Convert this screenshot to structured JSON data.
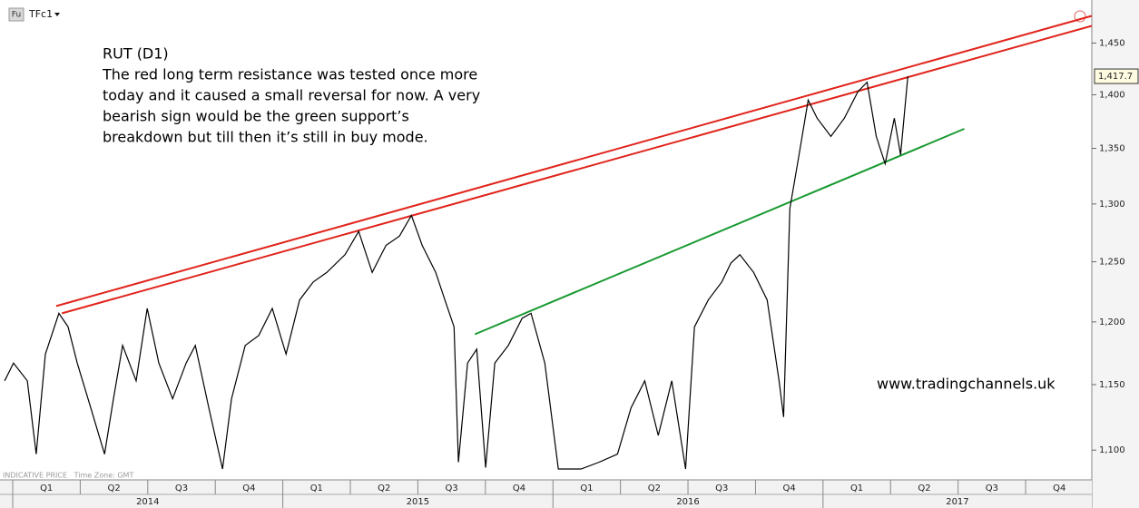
{
  "header": {
    "symbol_badge": "Fu",
    "symbol": "TFc1"
  },
  "chart_data": {
    "type": "line",
    "title": "RUT (D1)",
    "annotation": [
      "The red long term resistance was tested once more",
      "today and it caused a small reversal for now. A very",
      "bearish sign would be the green support’s",
      "breakdown but till then it’s still in buy mode."
    ],
    "watermark": "www.tradingchannels.uk",
    "footer_note": "INDICATIVE PRICE   Time Zone: GMT",
    "log_scale": true,
    "grid": false,
    "xlim": [
      2013.953,
      2017.995
    ],
    "ylim": [
      1084,
      1493
    ],
    "yticks": [
      {
        "value": 1100,
        "label": "1,100"
      },
      {
        "value": 1150,
        "label": "1,150"
      },
      {
        "value": 1200,
        "label": "1,200"
      },
      {
        "value": 1250,
        "label": "1,250"
      },
      {
        "value": 1300,
        "label": "1,300"
      },
      {
        "value": 1350,
        "label": "1,350"
      },
      {
        "value": 1400,
        "label": "1,400"
      },
      {
        "value": 1450,
        "label": "1,450"
      }
    ],
    "xticks": [
      {
        "value": 2014.0,
        "label": "Q1"
      },
      {
        "value": 2014.25,
        "label": "Q2"
      },
      {
        "value": 2014.5,
        "label": "Q3"
      },
      {
        "value": 2014.75,
        "label": "Q4"
      },
      {
        "value": 2015.0,
        "label": "Q1"
      },
      {
        "value": 2015.25,
        "label": "Q2"
      },
      {
        "value": 2015.5,
        "label": "Q3"
      },
      {
        "value": 2015.75,
        "label": "Q4"
      },
      {
        "value": 2016.0,
        "label": "Q1"
      },
      {
        "value": 2016.25,
        "label": "Q2"
      },
      {
        "value": 2016.5,
        "label": "Q3"
      },
      {
        "value": 2016.75,
        "label": "Q4"
      },
      {
        "value": 2017.0,
        "label": "Q1"
      },
      {
        "value": 2017.25,
        "label": "Q2"
      },
      {
        "value": 2017.5,
        "label": "Q3"
      },
      {
        "value": 2017.75,
        "label": "Q4"
      }
    ],
    "year_ticks": [
      2014,
      2015,
      2016,
      2017
    ],
    "series": [
      {
        "color": "#000000",
        "x": [
          2013.97,
          2014.003,
          2014.054,
          2014.087,
          2014.121,
          2014.171,
          2014.205,
          2014.239,
          2014.289,
          2014.34,
          2014.373,
          2014.407,
          2014.457,
          2014.498,
          2014.541,
          2014.592,
          2014.642,
          2014.676,
          2014.726,
          2014.777,
          2014.81,
          2014.861,
          2014.911,
          2014.961,
          2015.012,
          2015.062,
          2015.113,
          2015.163,
          2015.23,
          2015.281,
          2015.331,
          2015.382,
          2015.432,
          2015.476,
          2015.516,
          2015.566,
          2015.6,
          2015.634,
          2015.65,
          2015.684,
          2015.718,
          2015.751,
          2015.785,
          2015.835,
          2015.886,
          2015.919,
          2015.97,
          2016.02,
          2016.104,
          2016.171,
          2016.239,
          2016.289,
          2016.34,
          2016.39,
          2016.44,
          2016.491,
          2016.524,
          2016.575,
          2016.625,
          2016.659,
          2016.692,
          2016.743,
          2016.793,
          2016.837,
          2016.854,
          2016.877,
          2016.911,
          2016.945,
          2016.978,
          2017.029,
          2017.079,
          2017.129,
          2017.163,
          2017.197,
          2017.23,
          2017.264,
          2017.287,
          2017.314
        ],
        "values": [
          1153,
          1167,
          1153,
          1097,
          1174,
          1207,
          1196,
          1167,
          1132,
          1097,
          1139,
          1181,
          1153,
          1211,
          1167,
          1139,
          1167,
          1181,
          1132,
          1086,
          1139,
          1181,
          1189,
          1211,
          1174,
          1218,
          1233,
          1241,
          1256,
          1276,
          1241,
          1264,
          1272,
          1290,
          1264,
          1241,
          1218,
          1196,
          1091,
          1167,
          1178,
          1087,
          1167,
          1181,
          1203,
          1207,
          1167,
          1086,
          1086,
          1091,
          1097,
          1132,
          1153,
          1111,
          1153,
          1086,
          1196,
          1218,
          1233,
          1249,
          1256,
          1241,
          1218,
          1153,
          1125,
          1296,
          1344,
          1395,
          1378,
          1361,
          1378,
          1403,
          1412,
          1361,
          1336,
          1378,
          1344,
          1417.7
        ],
        "value_labels": {
          "77": "1,417.7"
        }
      }
    ],
    "trendlines": [
      {
        "color": "#e0241b",
        "x": [
          2014.161,
          2017.995
        ],
        "values": [
          1213,
          1477
        ]
      },
      {
        "color": "#e0241b",
        "x": [
          2014.182,
          2017.995
        ],
        "values": [
          1207,
          1467
        ]
      },
      {
        "color": "#1a9a32",
        "x": [
          2015.711,
          2017.523
        ],
        "values": [
          1190,
          1368
        ]
      }
    ]
  }
}
